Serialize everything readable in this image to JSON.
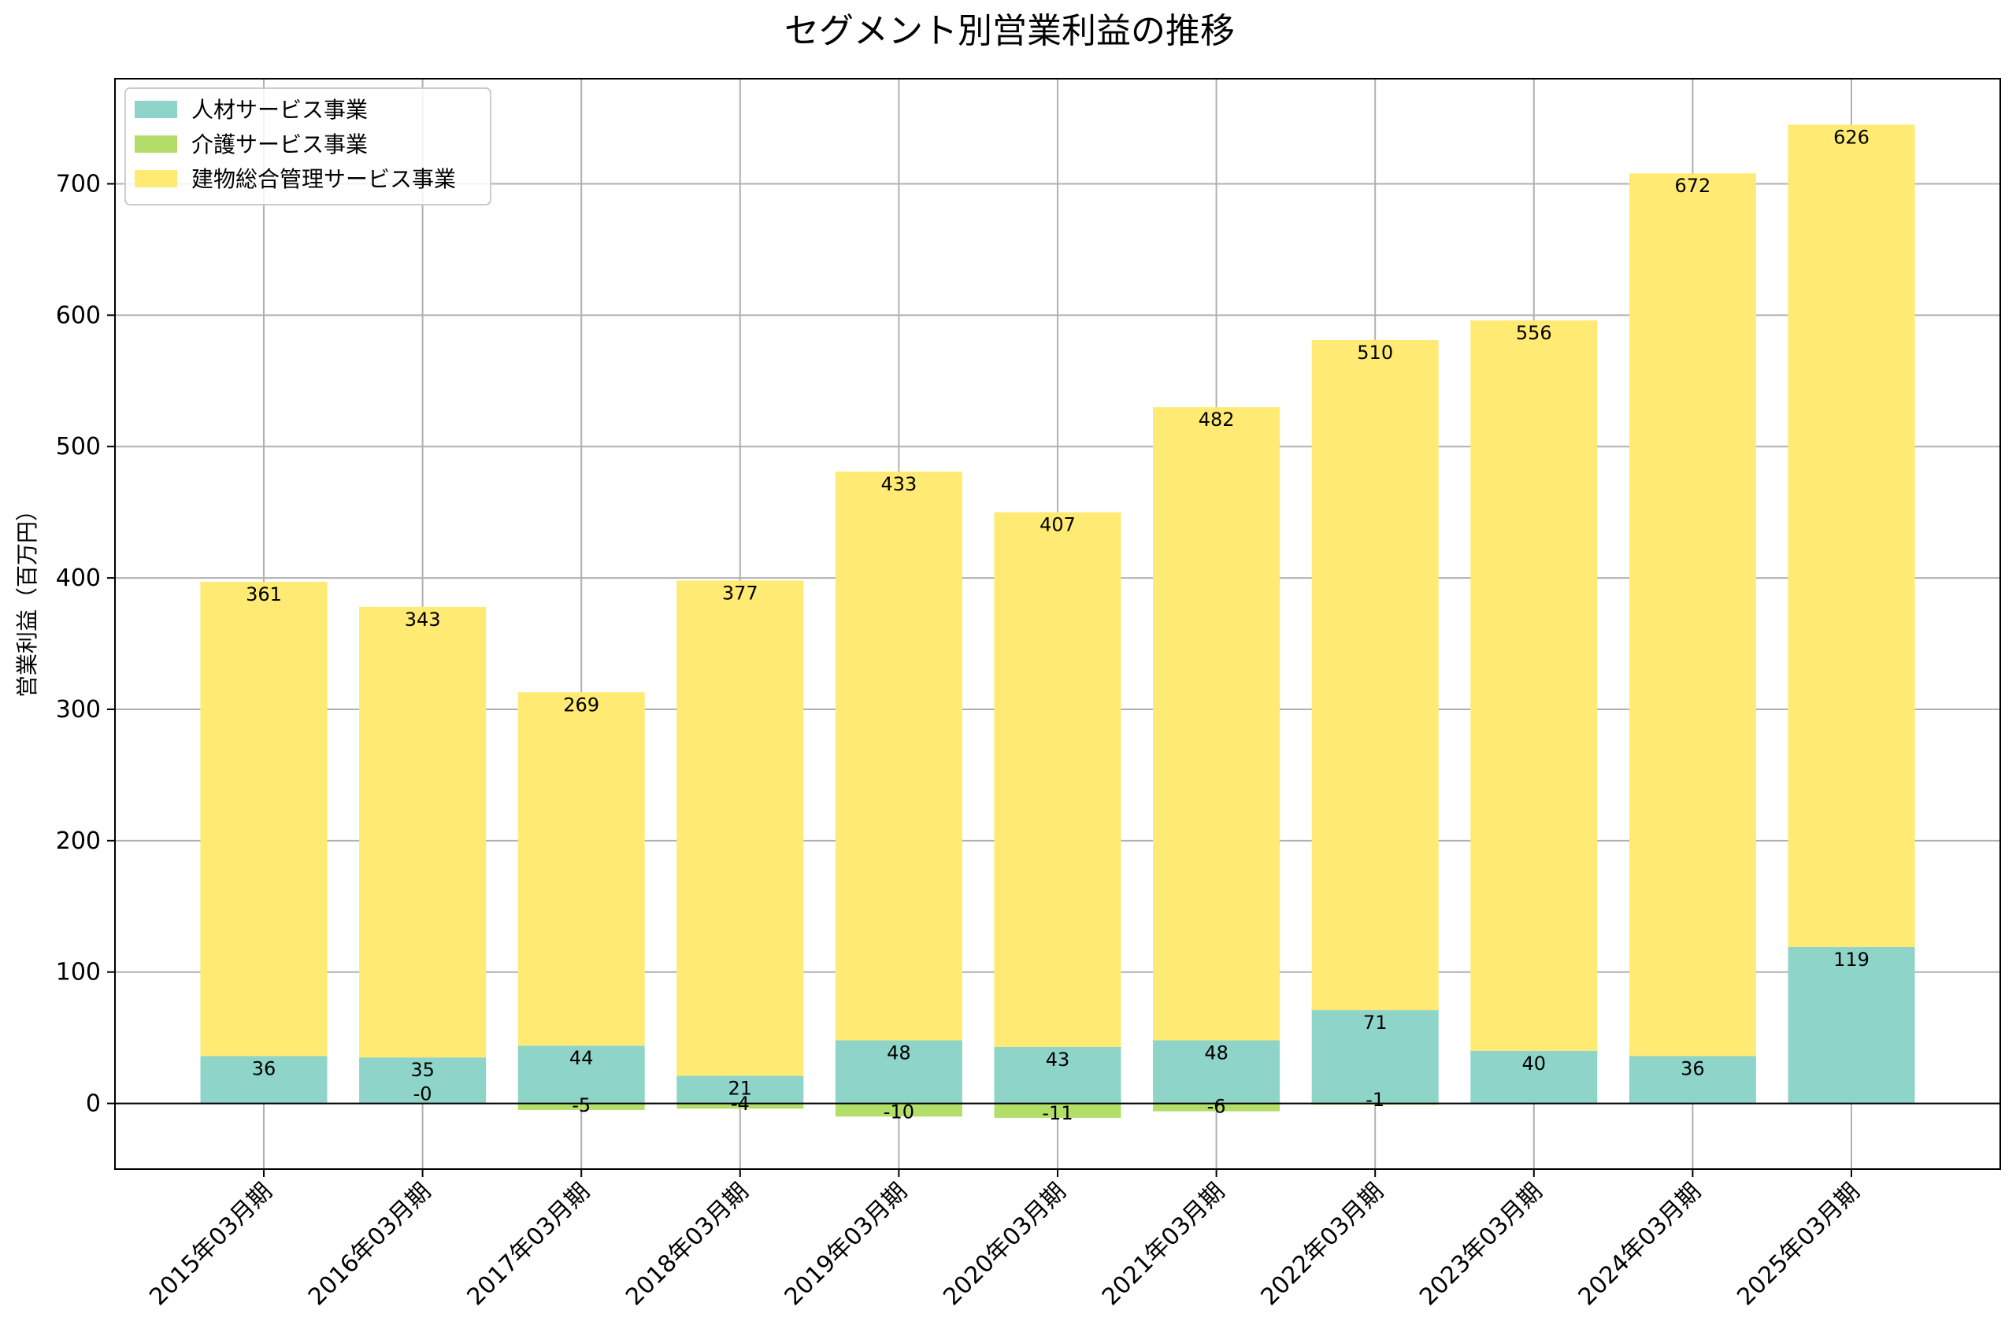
{
  "chart_data": {
    "type": "bar",
    "stacked": true,
    "title": "セグメント別営業利益の推移",
    "xlabel": "",
    "ylabel": "営業利益（百万円）",
    "ylim": [
      -50,
      780
    ],
    "yticks": [
      0,
      100,
      200,
      300,
      400,
      500,
      600,
      700
    ],
    "grid": true,
    "legend_position": "top-left",
    "categories": [
      "2015年03月期",
      "2016年03月期",
      "2017年03月期",
      "2018年03月期",
      "2019年03月期",
      "2020年03月期",
      "2021年03月期",
      "2022年03月期",
      "2023年03月期",
      "2024年03月期",
      "2025年03月期"
    ],
    "series": [
      {
        "name": "人材サービス事業",
        "color": "#8fd4c8",
        "values": [
          36,
          35,
          44,
          21,
          48,
          43,
          48,
          71,
          40,
          36,
          119
        ],
        "labels": [
          "36",
          "35",
          "44",
          "21",
          "48",
          "43",
          "48",
          "71",
          "40",
          "36",
          "119"
        ]
      },
      {
        "name": "介護サービス事業",
        "color": "#b3de69",
        "values": [
          0,
          0,
          -5,
          -4,
          -10,
          -11,
          -6,
          -1,
          null,
          null,
          null
        ],
        "labels": [
          "",
          "-0",
          "-5",
          "-4",
          "-10",
          "-11",
          "-6",
          "-1",
          "",
          "",
          ""
        ]
      },
      {
        "name": "建物総合管理サービス事業",
        "color": "#ffea73",
        "values": [
          361,
          343,
          269,
          377,
          433,
          407,
          482,
          510,
          556,
          672,
          626
        ],
        "labels": [
          "361",
          "343",
          "269",
          "377",
          "433",
          "407",
          "482",
          "510",
          "556",
          "672",
          "626"
        ]
      }
    ]
  }
}
